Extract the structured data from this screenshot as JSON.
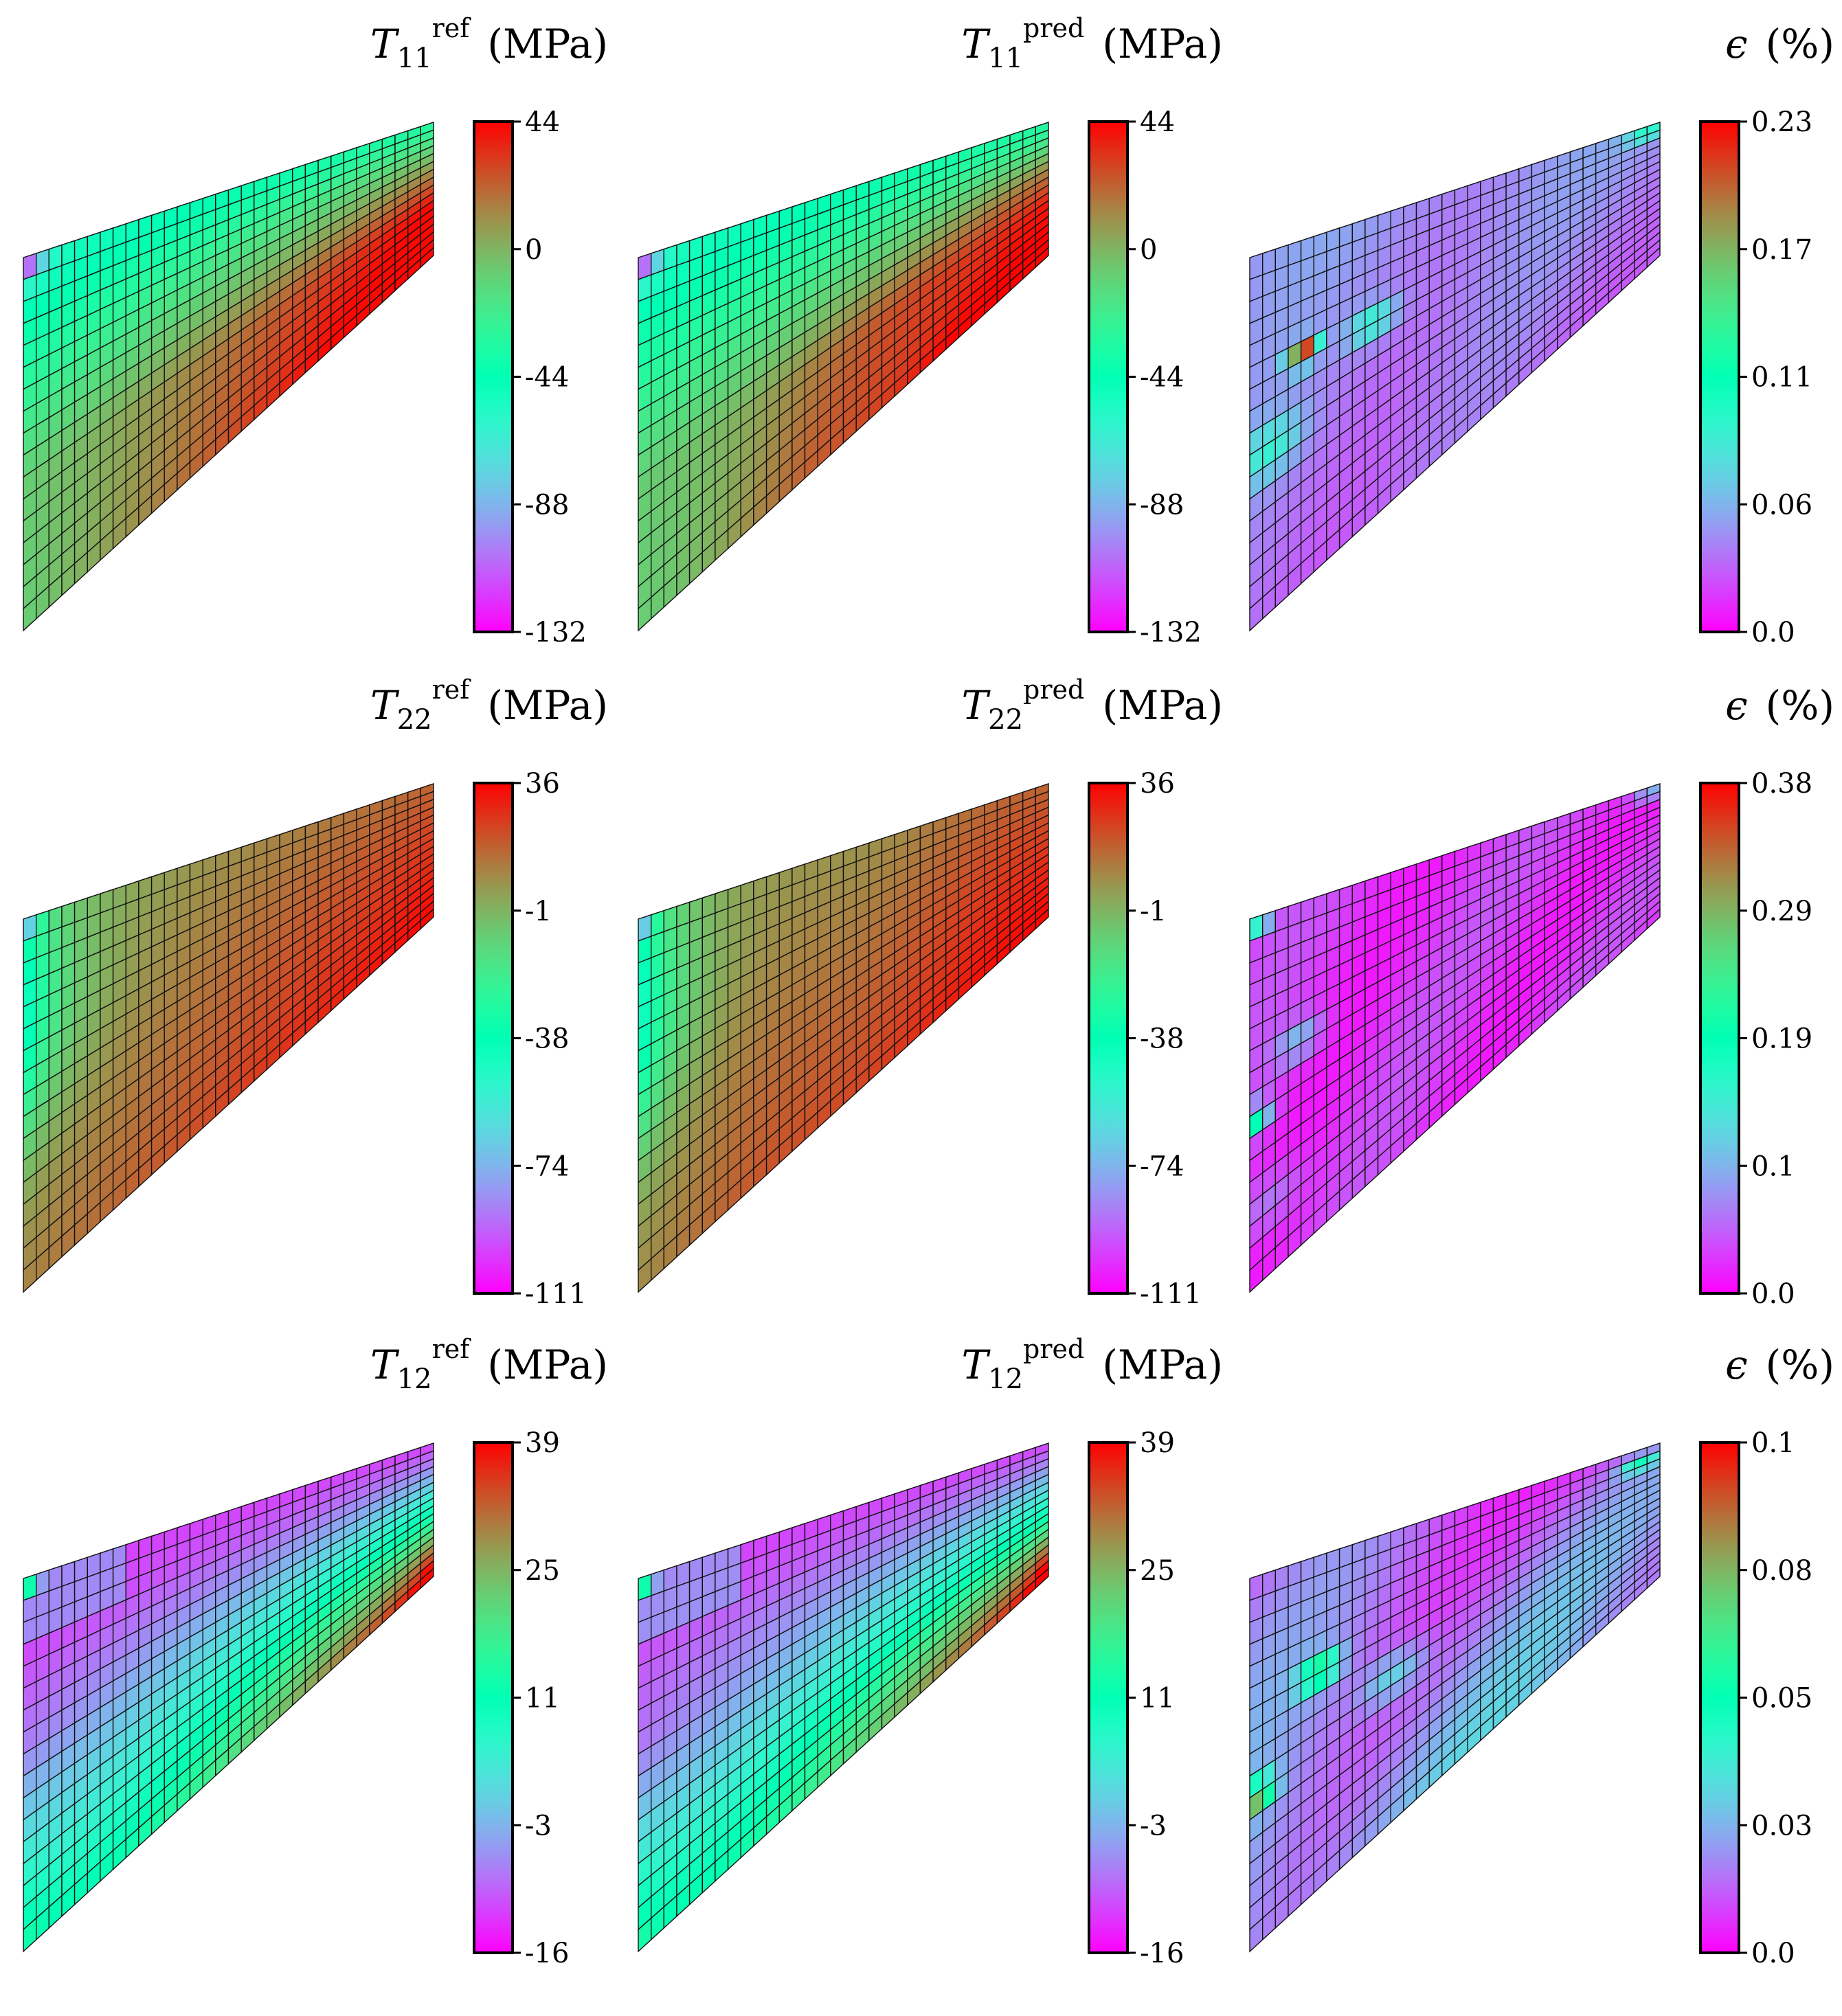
{
  "figure": {
    "rows": 3,
    "cols": 3
  },
  "chart_data": [
    {
      "type": "heatmap",
      "row": 0,
      "col": 0,
      "title": {
        "symbol": "T",
        "subscript": "11",
        "superscript": "ref",
        "unit": "(MPa)"
      },
      "field": "T11_ref",
      "colorbar": {
        "ticks": [
          "44",
          "0",
          "-44",
          "-88",
          "-132"
        ],
        "vmin": -132,
        "vmax": 44
      }
    },
    {
      "type": "heatmap",
      "row": 0,
      "col": 1,
      "title": {
        "symbol": "T",
        "subscript": "11",
        "superscript": "pred",
        "unit": "(MPa)"
      },
      "field": "T11_pred",
      "colorbar": {
        "ticks": [
          "44",
          "0",
          "-44",
          "-88",
          "-132"
        ],
        "vmin": -132,
        "vmax": 44
      }
    },
    {
      "type": "heatmap",
      "row": 0,
      "col": 2,
      "title": {
        "symbol": "ϵ",
        "subscript": "",
        "superscript": "",
        "unit": "(%)"
      },
      "field": "err11",
      "colorbar": {
        "ticks": [
          "0.23",
          "0.17",
          "0.11",
          "0.06",
          "0.0"
        ],
        "vmin": 0.0,
        "vmax": 0.23
      }
    },
    {
      "type": "heatmap",
      "row": 1,
      "col": 0,
      "title": {
        "symbol": "T",
        "subscript": "22",
        "superscript": "ref",
        "unit": "(MPa)"
      },
      "field": "T22_ref",
      "colorbar": {
        "ticks": [
          "36",
          "-1",
          "-38",
          "-74",
          "-111"
        ],
        "vmin": -111,
        "vmax": 36
      }
    },
    {
      "type": "heatmap",
      "row": 1,
      "col": 1,
      "title": {
        "symbol": "T",
        "subscript": "22",
        "superscript": "pred",
        "unit": "(MPa)"
      },
      "field": "T22_pred",
      "colorbar": {
        "ticks": [
          "36",
          "-1",
          "-38",
          "-74",
          "-111"
        ],
        "vmin": -111,
        "vmax": 36
      }
    },
    {
      "type": "heatmap",
      "row": 1,
      "col": 2,
      "title": {
        "symbol": "ϵ",
        "subscript": "",
        "superscript": "",
        "unit": "(%)"
      },
      "field": "err22",
      "colorbar": {
        "ticks": [
          "0.38",
          "0.29",
          "0.19",
          "0.1",
          "0.0"
        ],
        "vmin": 0.0,
        "vmax": 0.38
      }
    },
    {
      "type": "heatmap",
      "row": 2,
      "col": 0,
      "title": {
        "symbol": "T",
        "subscript": "12",
        "superscript": "ref",
        "unit": "(MPa)"
      },
      "field": "T12_ref",
      "colorbar": {
        "ticks": [
          "39",
          "25",
          "11",
          "-3",
          "-16"
        ],
        "vmin": -16,
        "vmax": 39
      }
    },
    {
      "type": "heatmap",
      "row": 2,
      "col": 1,
      "title": {
        "symbol": "T",
        "subscript": "12",
        "superscript": "pred",
        "unit": "(MPa)"
      },
      "field": "T12_pred",
      "colorbar": {
        "ticks": [
          "39",
          "25",
          "11",
          "-3",
          "-16"
        ],
        "vmin": -16,
        "vmax": 39
      }
    },
    {
      "type": "heatmap",
      "row": 2,
      "col": 2,
      "title": {
        "symbol": "ϵ",
        "subscript": "",
        "superscript": "",
        "unit": "(%)"
      },
      "field": "err12",
      "colorbar": {
        "ticks": [
          "0.1",
          "0.08",
          "0.05",
          "0.03",
          "0.0"
        ],
        "vmin": 0.0,
        "vmax": 0.1
      }
    }
  ],
  "colormap": "rainbow"
}
